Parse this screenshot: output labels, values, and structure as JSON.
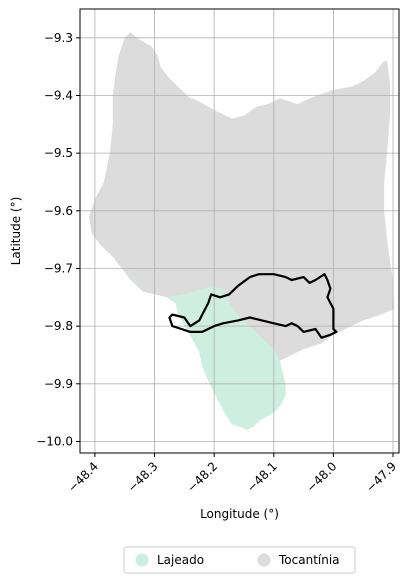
{
  "chart_data": {
    "type": "map",
    "xlabel": "Longitude (°)",
    "ylabel": "Latitude (°)",
    "xlim": [
      -48.425,
      -47.89
    ],
    "ylim": [
      -10.02,
      -9.25
    ],
    "x_ticks": [
      -48.4,
      -48.3,
      -48.2,
      -48.1,
      -48.0,
      -47.9
    ],
    "x_tick_labels": [
      "−48.4",
      "−48.3",
      "−48.2",
      "−48.1",
      "−48.0",
      "−47.9"
    ],
    "y_ticks": [
      -9.3,
      -9.4,
      -9.5,
      -9.6,
      -9.7,
      -9.8,
      -9.9,
      -10.0
    ],
    "y_tick_labels": [
      "−9.3",
      "−9.4",
      "−9.5",
      "−9.6",
      "−9.7",
      "−9.8",
      "−9.9",
      "−10.0"
    ],
    "grid": true,
    "legend_position": "bottom-center",
    "legend": [
      {
        "label": "Lajeado",
        "color": "#cdeee0"
      },
      {
        "label": "Tocantínia",
        "color": "#dcdcdc"
      }
    ],
    "regions": [
      {
        "name": "Tocantínia",
        "color": "#dcdcdc",
        "coords": [
          [
            -48.34,
            -9.29
          ],
          [
            -48.33,
            -9.3
          ],
          [
            -48.305,
            -9.315
          ],
          [
            -48.295,
            -9.33
          ],
          [
            -48.29,
            -9.35
          ],
          [
            -48.275,
            -9.37
          ],
          [
            -48.255,
            -9.39
          ],
          [
            -48.24,
            -9.405
          ],
          [
            -48.235,
            -9.405
          ],
          [
            -48.2,
            -9.425
          ],
          [
            -48.17,
            -9.44
          ],
          [
            -48.15,
            -9.435
          ],
          [
            -48.13,
            -9.42
          ],
          [
            -48.11,
            -9.415
          ],
          [
            -48.09,
            -9.405
          ],
          [
            -48.06,
            -9.415
          ],
          [
            -48.04,
            -9.405
          ],
          [
            -48.0,
            -9.39
          ],
          [
            -47.97,
            -9.385
          ],
          [
            -47.95,
            -9.375
          ],
          [
            -47.93,
            -9.36
          ],
          [
            -47.915,
            -9.34
          ],
          [
            -47.91,
            -9.34
          ],
          [
            -47.905,
            -9.38
          ],
          [
            -47.905,
            -9.43
          ],
          [
            -47.91,
            -9.5
          ],
          [
            -47.915,
            -9.55
          ],
          [
            -47.915,
            -9.6
          ],
          [
            -47.91,
            -9.65
          ],
          [
            -47.905,
            -9.69
          ],
          [
            -47.9,
            -9.72
          ],
          [
            -47.898,
            -9.77
          ],
          [
            -47.92,
            -9.78
          ],
          [
            -47.95,
            -9.79
          ],
          [
            -47.97,
            -9.8
          ],
          [
            -48.0,
            -9.815
          ],
          [
            -48.02,
            -9.83
          ],
          [
            -48.05,
            -9.84
          ],
          [
            -48.07,
            -9.85
          ],
          [
            -48.1,
            -9.865
          ],
          [
            -48.12,
            -9.87
          ],
          [
            -48.14,
            -9.885
          ],
          [
            -48.16,
            -9.9
          ],
          [
            -48.175,
            -9.92
          ],
          [
            -48.18,
            -9.935
          ],
          [
            -48.19,
            -9.935
          ],
          [
            -48.2,
            -9.915
          ],
          [
            -48.21,
            -9.895
          ],
          [
            -48.22,
            -9.87
          ],
          [
            -48.225,
            -9.845
          ],
          [
            -48.235,
            -9.825
          ],
          [
            -48.25,
            -9.8
          ],
          [
            -48.26,
            -9.78
          ],
          [
            -48.265,
            -9.76
          ],
          [
            -48.28,
            -9.75
          ],
          [
            -48.3,
            -9.745
          ],
          [
            -48.32,
            -9.74
          ],
          [
            -48.34,
            -9.72
          ],
          [
            -48.355,
            -9.7
          ],
          [
            -48.37,
            -9.68
          ],
          [
            -48.39,
            -9.66
          ],
          [
            -48.405,
            -9.64
          ],
          [
            -48.41,
            -9.61
          ],
          [
            -48.4,
            -9.58
          ],
          [
            -48.385,
            -9.55
          ],
          [
            -48.375,
            -9.5
          ],
          [
            -48.37,
            -9.45
          ],
          [
            -48.37,
            -9.4
          ],
          [
            -48.365,
            -9.36
          ],
          [
            -48.36,
            -9.33
          ],
          [
            -48.35,
            -9.3
          ]
        ]
      },
      {
        "name": "Lajeado",
        "color": "#cdeee0",
        "coords": [
          [
            -48.345,
            -9.7
          ],
          [
            -48.335,
            -9.72
          ],
          [
            -48.32,
            -9.74
          ],
          [
            -48.3,
            -9.745
          ],
          [
            -48.28,
            -9.75
          ],
          [
            -48.265,
            -9.76
          ],
          [
            -48.26,
            -9.78
          ],
          [
            -48.25,
            -9.8
          ],
          [
            -48.235,
            -9.825
          ],
          [
            -48.225,
            -9.845
          ],
          [
            -48.22,
            -9.87
          ],
          [
            -48.21,
            -9.895
          ],
          [
            -48.2,
            -9.915
          ],
          [
            -48.19,
            -9.935
          ],
          [
            -48.18,
            -9.955
          ],
          [
            -48.17,
            -9.97
          ],
          [
            -48.155,
            -9.975
          ],
          [
            -48.145,
            -9.98
          ],
          [
            -48.135,
            -9.975
          ],
          [
            -48.125,
            -9.965
          ],
          [
            -48.1,
            -9.95
          ],
          [
            -48.09,
            -9.94
          ],
          [
            -48.08,
            -9.92
          ],
          [
            -48.08,
            -9.9
          ],
          [
            -48.085,
            -9.88
          ],
          [
            -48.09,
            -9.86
          ],
          [
            -48.1,
            -9.84
          ],
          [
            -48.12,
            -9.82
          ],
          [
            -48.14,
            -9.8
          ],
          [
            -48.16,
            -9.78
          ],
          [
            -48.175,
            -9.76
          ],
          [
            -48.18,
            -9.74
          ],
          [
            -48.2,
            -9.73
          ],
          [
            -48.22,
            -9.735
          ],
          [
            -48.25,
            -9.745
          ],
          [
            -48.28,
            -9.75
          ],
          [
            -48.3,
            -9.745
          ],
          [
            -48.32,
            -9.74
          ]
        ]
      }
    ],
    "outline": {
      "color": "#000000",
      "coords": [
        [
          -48.275,
          -9.785
        ],
        [
          -48.27,
          -9.78
        ],
        [
          -48.25,
          -9.785
        ],
        [
          -48.24,
          -9.8
        ],
        [
          -48.225,
          -9.79
        ],
        [
          -48.21,
          -9.76
        ],
        [
          -48.205,
          -9.745
        ],
        [
          -48.19,
          -9.75
        ],
        [
          -48.175,
          -9.745
        ],
        [
          -48.16,
          -9.73
        ],
        [
          -48.14,
          -9.715
        ],
        [
          -48.125,
          -9.71
        ],
        [
          -48.1,
          -9.71
        ],
        [
          -48.08,
          -9.715
        ],
        [
          -48.07,
          -9.72
        ],
        [
          -48.05,
          -9.715
        ],
        [
          -48.04,
          -9.725
        ],
        [
          -48.03,
          -9.72
        ],
        [
          -48.015,
          -9.71
        ],
        [
          -48.01,
          -9.72
        ],
        [
          -48.005,
          -9.735
        ],
        [
          -48.01,
          -9.75
        ],
        [
          -48.0,
          -9.77
        ],
        [
          -48.0,
          -9.79
        ],
        [
          -48.0,
          -9.805
        ],
        [
          -47.995,
          -9.81
        ],
        [
          -48.005,
          -9.815
        ],
        [
          -48.02,
          -9.82
        ],
        [
          -48.03,
          -9.805
        ],
        [
          -48.05,
          -9.81
        ],
        [
          -48.06,
          -9.8
        ],
        [
          -48.07,
          -9.795
        ],
        [
          -48.08,
          -9.8
        ],
        [
          -48.1,
          -9.795
        ],
        [
          -48.12,
          -9.79
        ],
        [
          -48.14,
          -9.785
        ],
        [
          -48.16,
          -9.79
        ],
        [
          -48.185,
          -9.795
        ],
        [
          -48.2,
          -9.8
        ],
        [
          -48.22,
          -9.81
        ],
        [
          -48.24,
          -9.81
        ],
        [
          -48.255,
          -9.805
        ],
        [
          -48.27,
          -9.8
        ]
      ]
    }
  }
}
